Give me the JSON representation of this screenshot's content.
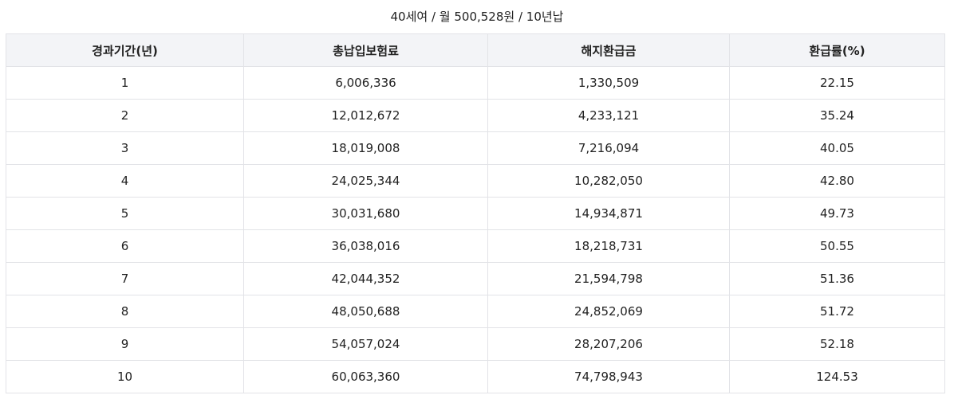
{
  "caption": "40세여 / 월 500,528원 / 10년납",
  "table": {
    "headers": [
      "경과기간(년)",
      "총납입보험료",
      "해지환급금",
      "환급률(%)"
    ],
    "rows": [
      [
        "1",
        "6,006,336",
        "1,330,509",
        "22.15"
      ],
      [
        "2",
        "12,012,672",
        "4,233,121",
        "35.24"
      ],
      [
        "3",
        "18,019,008",
        "7,216,094",
        "40.05"
      ],
      [
        "4",
        "24,025,344",
        "10,282,050",
        "42.80"
      ],
      [
        "5",
        "30,031,680",
        "14,934,871",
        "49.73"
      ],
      [
        "6",
        "36,038,016",
        "18,218,731",
        "50.55"
      ],
      [
        "7",
        "42,044,352",
        "21,594,798",
        "51.36"
      ],
      [
        "8",
        "48,050,688",
        "24,852,069",
        "51.72"
      ],
      [
        "9",
        "54,057,024",
        "28,207,206",
        "52.18"
      ],
      [
        "10",
        "60,063,360",
        "74,798,943",
        "124.53"
      ]
    ]
  }
}
